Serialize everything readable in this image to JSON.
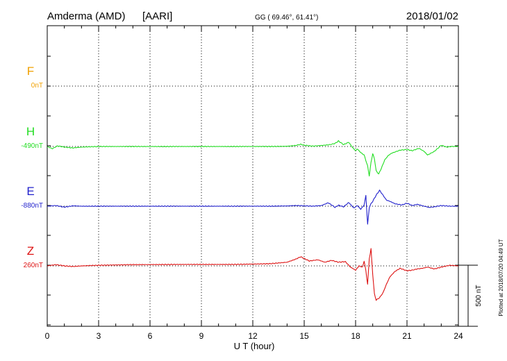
{
  "header": {
    "station": "Amderma (AMD)",
    "institute": "[AARI]",
    "coords": "GG ( 69.46°,  61.41°)",
    "date": "2018/01/02"
  },
  "side_note": "Plotted at 2018/07/20 04:49 UT",
  "chart_data": {
    "type": "line",
    "xlabel": "U T (hour)",
    "xlim": [
      0,
      24
    ],
    "xticks": [
      "0",
      "3",
      "6",
      "9",
      "12",
      "15",
      "18",
      "21",
      "24"
    ],
    "scale_label": "500 nT",
    "scale_nT": 500,
    "grid": true,
    "series": [
      {
        "name": "F",
        "baseline": "0nT",
        "color": "#f0a000",
        "x": [],
        "y": []
      },
      {
        "name": "H",
        "baseline": "-490nT",
        "color": "#22dd22",
        "x": [
          0,
          0.3,
          0.6,
          1,
          1.5,
          2,
          3,
          5,
          8,
          11,
          13,
          14,
          14.5,
          14.8,
          15,
          15.5,
          16,
          16.5,
          16.8,
          17,
          17.3,
          17.6,
          17.8,
          18,
          18.1,
          18.3,
          18.5,
          18.7,
          18.8,
          18.9,
          19,
          19.1,
          19.2,
          19.35,
          19.5,
          19.7,
          19.9,
          20.1,
          20.3,
          20.6,
          21,
          21.3,
          21.7,
          22,
          22.2,
          22.4,
          22.6,
          22.8,
          23,
          23.3,
          23.6,
          24
        ],
        "y": [
          0,
          -18,
          5,
          -5,
          -12,
          -5,
          0,
          0,
          0,
          0,
          0,
          2,
          8,
          18,
          10,
          3,
          8,
          15,
          25,
          45,
          15,
          35,
          -5,
          -35,
          -20,
          -50,
          -70,
          -160,
          -240,
          -130,
          -60,
          -100,
          -200,
          -225,
          -180,
          -110,
          -75,
          -55,
          -45,
          -30,
          -25,
          -35,
          -15,
          -40,
          -70,
          -55,
          -40,
          -15,
          10,
          -5,
          0,
          0
        ]
      },
      {
        "name": "E",
        "baseline": "-880nT",
        "color": "#2020cc",
        "x": [
          0,
          0.5,
          1,
          1.5,
          2,
          3,
          5,
          8,
          11,
          13,
          14,
          14.5,
          15,
          15.5,
          16,
          16.4,
          16.6,
          16.8,
          17,
          17.3,
          17.6,
          17.9,
          18.1,
          18.3,
          18.5,
          18.6,
          18.7,
          18.8,
          18.9,
          19,
          19.2,
          19.4,
          19.6,
          19.8,
          20,
          20.3,
          20.7,
          21,
          21.3,
          21.6,
          22,
          22.3,
          22.6,
          23,
          23.5,
          24
        ],
        "y": [
          0,
          5,
          -8,
          3,
          0,
          0,
          0,
          0,
          0,
          0,
          2,
          5,
          3,
          0,
          5,
          28,
          10,
          -10,
          8,
          -5,
          30,
          -15,
          5,
          -25,
          10,
          90,
          -150,
          -10,
          20,
          40,
          90,
          130,
          90,
          50,
          40,
          20,
          10,
          25,
          5,
          15,
          0,
          -10,
          -5,
          5,
          0,
          0
        ]
      },
      {
        "name": "Z",
        "baseline": "260nT",
        "color": "#dd1111",
        "x": [
          0,
          0.5,
          1,
          1.5,
          2,
          3,
          5,
          8,
          11,
          13,
          14,
          14.5,
          14.8,
          15,
          15.3,
          15.8,
          16.2,
          16.6,
          17,
          17.4,
          17.7,
          18,
          18.2,
          18.4,
          18.5,
          18.6,
          18.7,
          18.8,
          18.9,
          19,
          19.1,
          19.2,
          19.4,
          19.6,
          19.8,
          20,
          20.3,
          20.6,
          21,
          21.3,
          21.6,
          21.9,
          22.2,
          22.6,
          23,
          23.5,
          24
        ],
        "y": [
          0,
          10,
          0,
          -5,
          0,
          5,
          10,
          12,
          12,
          18,
          30,
          55,
          75,
          60,
          40,
          50,
          30,
          45,
          30,
          35,
          -10,
          -35,
          0,
          -10,
          40,
          -40,
          -150,
          60,
          140,
          -70,
          -230,
          -280,
          -260,
          -220,
          -150,
          -90,
          -45,
          -20,
          -40,
          -35,
          -25,
          -20,
          -10,
          -25,
          -10,
          5,
          0
        ]
      }
    ]
  }
}
